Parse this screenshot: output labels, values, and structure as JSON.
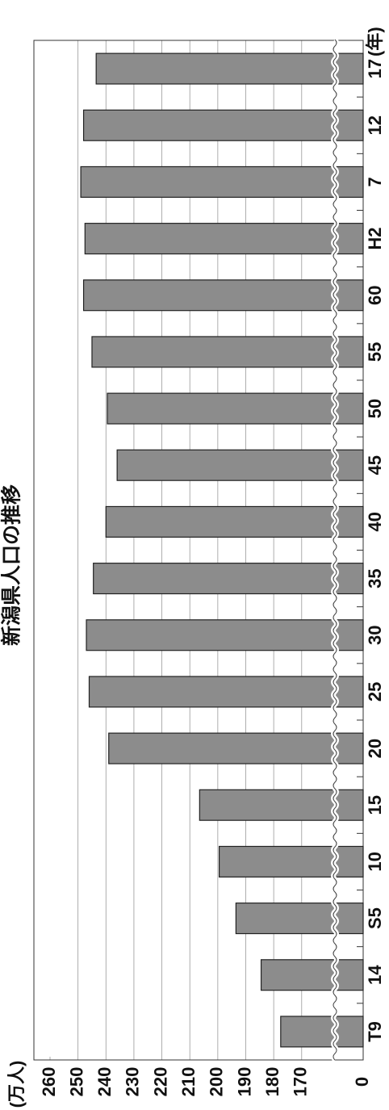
{
  "chart_data": {
    "type": "bar",
    "title": "新潟県人口の推移",
    "x_label": "(年)",
    "y_label": "(万人)",
    "categories": [
      "T9",
      "14",
      "S5",
      "10",
      "15",
      "20",
      "25",
      "30",
      "35",
      "40",
      "45",
      "50",
      "55",
      "60",
      "H2",
      "7",
      "12",
      "17"
    ],
    "values": [
      177.5,
      184.5,
      193.5,
      199.5,
      206.5,
      239,
      246,
      247,
      244.5,
      240,
      236,
      239.5,
      245,
      248,
      247.5,
      249,
      248,
      243.5
    ],
    "color": "#8c8c8c",
    "ylim": [
      0,
      260
    ],
    "axis_break": [
      0,
      148
    ],
    "yticks": [
      0,
      170,
      180,
      190,
      200,
      210,
      220,
      230,
      240,
      250,
      260
    ],
    "grid": true
  }
}
